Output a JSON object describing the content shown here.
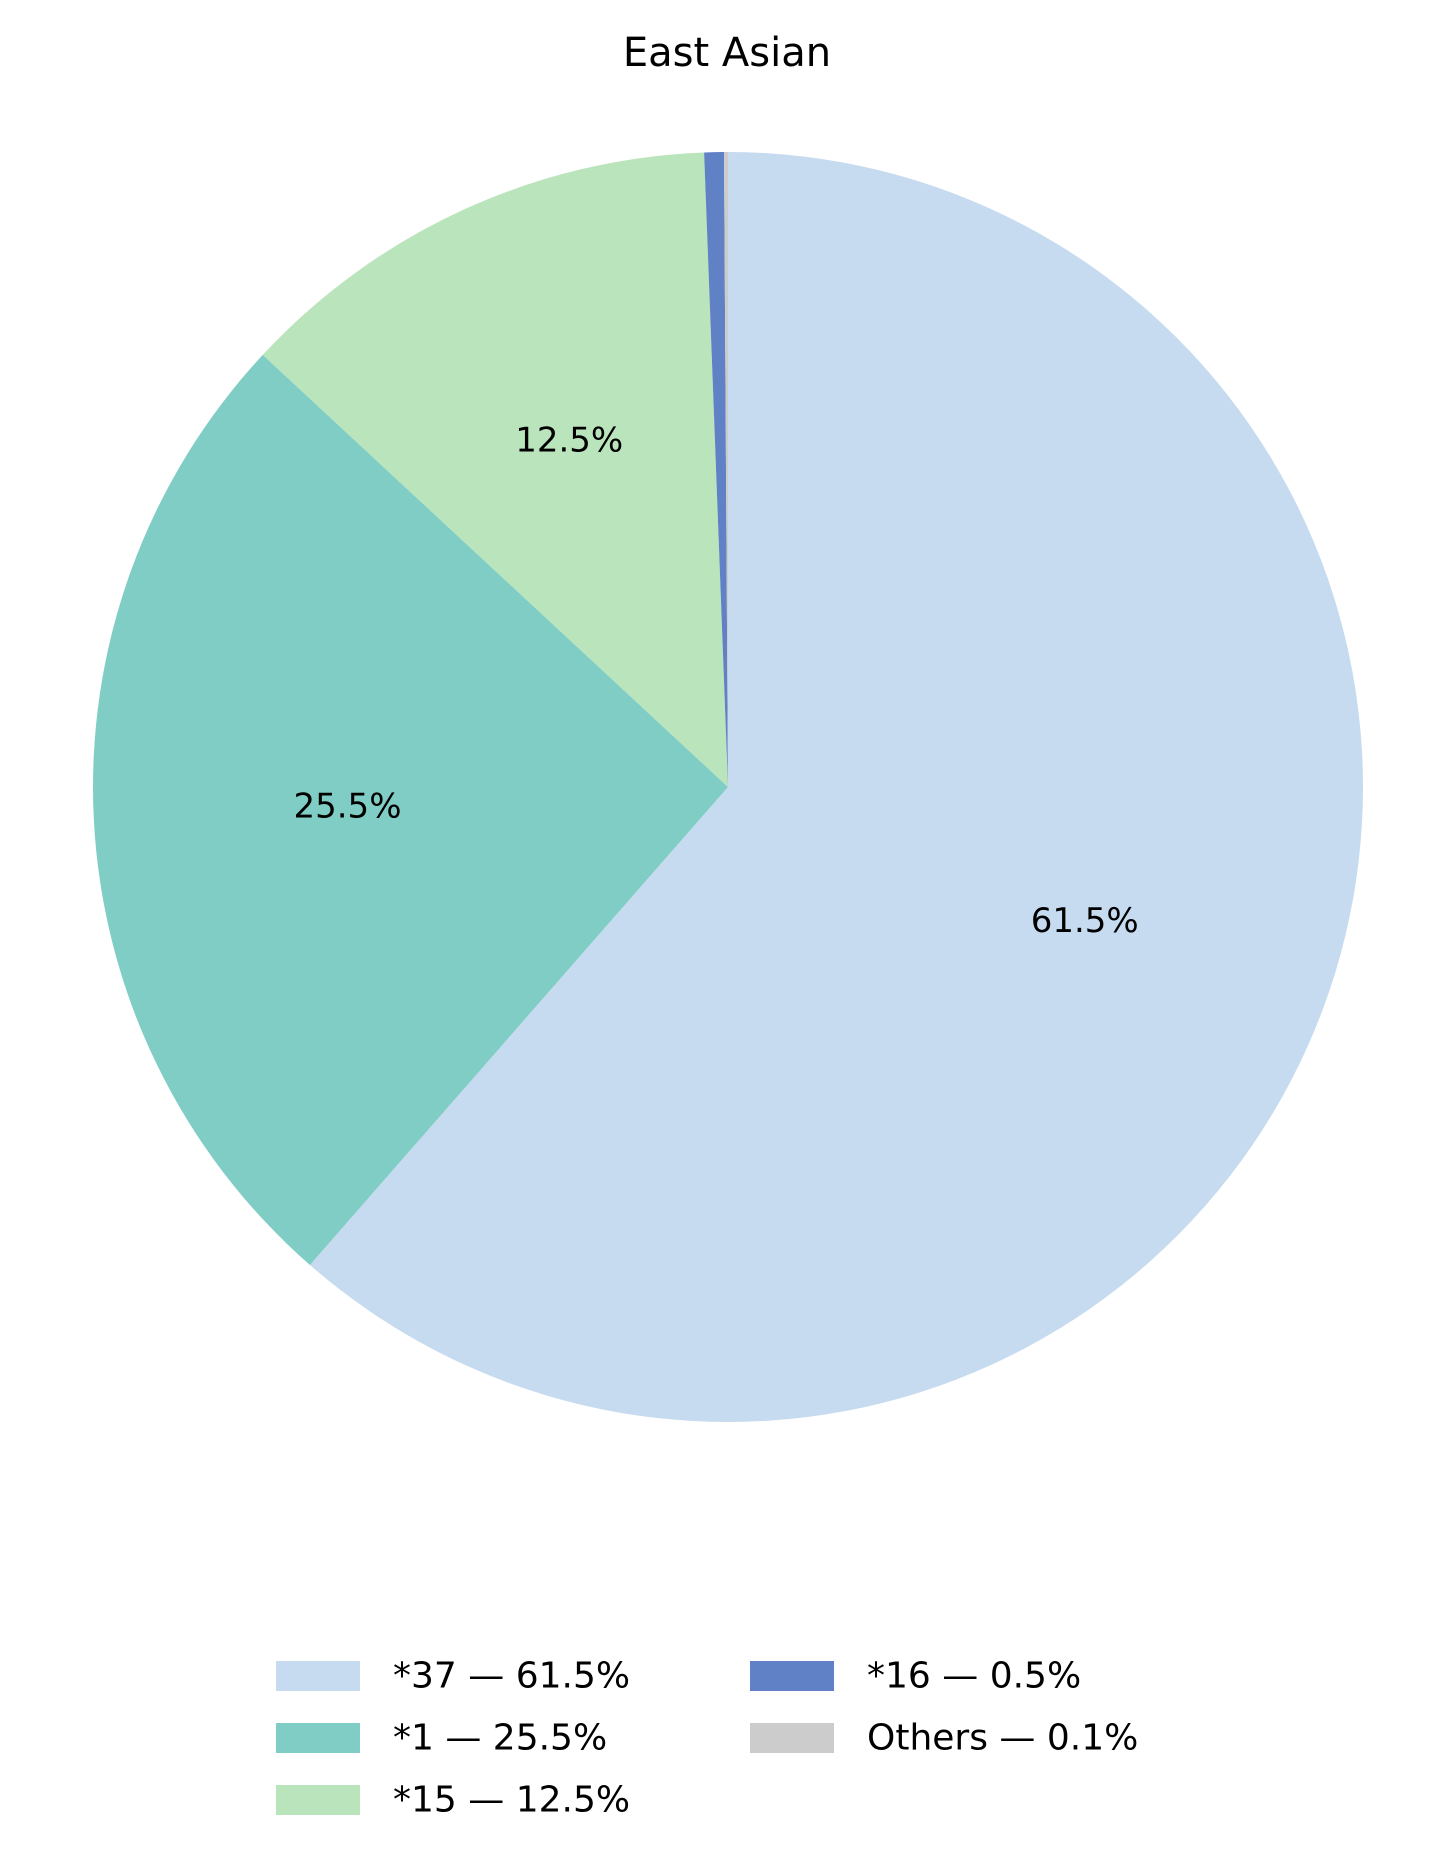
{
  "chart_data": {
    "type": "pie",
    "title": "East Asian",
    "start_angle_deg": 90,
    "direction": "clockwise",
    "slices": [
      {
        "label": "*37",
        "value": 61.5,
        "pct_label": "61.5%",
        "legend_label": "*37 — 61.5%",
        "color": "#c6dbef",
        "show_pct": true
      },
      {
        "label": "*1",
        "value": 25.5,
        "pct_label": "25.5%",
        "legend_label": "*1 — 25.5%",
        "color": "#7fcdc4",
        "show_pct": true
      },
      {
        "label": "*15",
        "value": 12.5,
        "pct_label": "12.5%",
        "legend_label": "*15 — 12.5%",
        "color": "#bae4bc",
        "show_pct": true
      },
      {
        "label": "*16",
        "value": 0.5,
        "pct_label": "",
        "legend_label": "*16 — 0.5%",
        "color": "#6181c6",
        "show_pct": false
      },
      {
        "label": "Others",
        "value": 0.1,
        "pct_label": "",
        "legend_label": "Others — 0.1%",
        "color": "#cccccc",
        "show_pct": false
      }
    ],
    "legend": {
      "position": "bottom-center",
      "columns": 2
    }
  }
}
